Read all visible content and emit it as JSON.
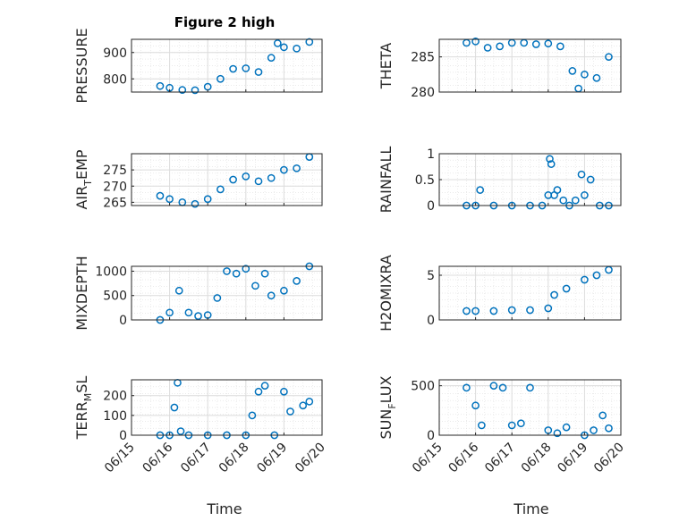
{
  "figure": {
    "title": "Figure 2 high",
    "x_label": "Time",
    "x_ticks": [
      "06/15",
      "06/16",
      "06/17",
      "06/18",
      "06/19",
      "06/20"
    ]
  },
  "colors": {
    "marker": "#0072BD",
    "grid": "#dcdcdc",
    "axis": "#262626"
  },
  "chart_data": [
    {
      "id": "pressure",
      "type": "scatter",
      "ylabel": "PRESSURE",
      "ylim": [
        750,
        950
      ],
      "yticks": [
        800,
        900
      ],
      "x": [
        "06/15 18:00",
        "06/16 00:00",
        "06/16 08:00",
        "06/16 16:00",
        "06/17 00:00",
        "06/17 08:00",
        "06/17 16:00",
        "06/18 00:00",
        "06/18 08:00",
        "06/18 16:00",
        "06/18 20:00",
        "06/19 00:00",
        "06/19 08:00",
        "06/19 16:00"
      ],
      "y": [
        773,
        766,
        758,
        757,
        770,
        800,
        838,
        840,
        826,
        880,
        935,
        920,
        915,
        940
      ]
    },
    {
      "id": "theta",
      "type": "scatter",
      "ylabel": "THETA",
      "ylim": [
        280,
        287.5
      ],
      "yticks": [
        280,
        285
      ],
      "x": [
        "06/15 18:00",
        "06/16 00:00",
        "06/16 08:00",
        "06/16 16:00",
        "06/17 00:00",
        "06/17 08:00",
        "06/17 16:00",
        "06/18 00:00",
        "06/18 08:00",
        "06/18 16:00",
        "06/18 20:00",
        "06/19 00:00",
        "06/19 08:00",
        "06/19 16:00"
      ],
      "y": [
        287.0,
        287.2,
        286.3,
        286.5,
        287.0,
        287.0,
        286.8,
        286.9,
        286.5,
        283.0,
        280.5,
        282.5,
        282.0,
        285.0
      ]
    },
    {
      "id": "air_temp",
      "type": "scatter",
      "ylabel": "AIR",
      "ylabel_sub": "T",
      "ylabel_rest": "EMP",
      "ylim": [
        264,
        280
      ],
      "yticks": [
        265,
        270,
        275
      ],
      "x": [
        "06/15 18:00",
        "06/16 00:00",
        "06/16 08:00",
        "06/16 16:00",
        "06/17 00:00",
        "06/17 08:00",
        "06/17 16:00",
        "06/18 00:00",
        "06/18 08:00",
        "06/18 16:00",
        "06/19 00:00",
        "06/19 08:00",
        "06/19 16:00"
      ],
      "y": [
        267,
        266,
        265,
        264.5,
        266,
        269,
        272,
        273,
        271.5,
        272.5,
        275,
        275.5,
        279
      ]
    },
    {
      "id": "rainfall",
      "type": "scatter",
      "ylabel": "RAINFALL",
      "ylim": [
        0,
        1
      ],
      "yticks": [
        0,
        0.5,
        1
      ],
      "x": [
        "06/15 18:00",
        "06/16 00:00",
        "06/16 03:00",
        "06/16 12:00",
        "06/17 00:00",
        "06/17 12:00",
        "06/17 20:00",
        "06/18 00:00",
        "06/18 01:00",
        "06/18 02:00",
        "06/18 04:00",
        "06/18 06:00",
        "06/18 10:00",
        "06/18 14:00",
        "06/18 18:00",
        "06/18 22:00",
        "06/19 00:00",
        "06/19 04:00",
        "06/19 10:00",
        "06/19 16:00"
      ],
      "y": [
        0,
        0,
        0.3,
        0,
        0,
        0,
        0,
        0.2,
        0.9,
        0.8,
        0.2,
        0.3,
        0.1,
        0,
        0.1,
        0.6,
        0.2,
        0.5,
        0,
        0
      ]
    },
    {
      "id": "mixdepth",
      "type": "scatter",
      "ylabel": "MIXDEPTH",
      "ylim": [
        0,
        1100
      ],
      "yticks": [
        0,
        500,
        1000
      ],
      "x": [
        "06/15 18:00",
        "06/16 00:00",
        "06/16 06:00",
        "06/16 12:00",
        "06/16 18:00",
        "06/17 00:00",
        "06/17 06:00",
        "06/17 12:00",
        "06/17 18:00",
        "06/18 00:00",
        "06/18 06:00",
        "06/18 12:00",
        "06/18 16:00",
        "06/19 00:00",
        "06/19 08:00",
        "06/19 16:00"
      ],
      "y": [
        0,
        150,
        600,
        150,
        80,
        100,
        450,
        1000,
        950,
        1050,
        700,
        950,
        500,
        600,
        800,
        1100
      ]
    },
    {
      "id": "h2omixra",
      "type": "scatter",
      "ylabel": "H2OMIXRA",
      "ylim": [
        0,
        6
      ],
      "yticks": [
        0,
        5
      ],
      "x": [
        "06/15 18:00",
        "06/16 00:00",
        "06/16 12:00",
        "06/17 00:00",
        "06/17 12:00",
        "06/18 00:00",
        "06/18 04:00",
        "06/18 12:00",
        "06/19 00:00",
        "06/19 08:00",
        "06/19 16:00"
      ],
      "y": [
        1.0,
        1.0,
        1.0,
        1.1,
        1.1,
        1.3,
        2.8,
        3.5,
        4.5,
        5.0,
        5.6
      ]
    },
    {
      "id": "terr_msl",
      "type": "scatter",
      "ylabel": "TERR",
      "ylabel_sub": "M",
      "ylabel_rest": "SL",
      "ylim": [
        0,
        280
      ],
      "yticks": [
        0,
        100,
        200
      ],
      "x": [
        "06/15 18:00",
        "06/16 00:00",
        "06/16 03:00",
        "06/16 05:00",
        "06/16 07:00",
        "06/16 12:00",
        "06/17 00:00",
        "06/17 12:00",
        "06/18 00:00",
        "06/18 04:00",
        "06/18 08:00",
        "06/18 12:00",
        "06/18 18:00",
        "06/19 00:00",
        "06/19 04:00",
        "06/19 12:00",
        "06/19 16:00"
      ],
      "y": [
        0,
        0,
        140,
        265,
        20,
        0,
        0,
        0,
        0,
        100,
        220,
        250,
        0,
        220,
        120,
        150,
        170
      ]
    },
    {
      "id": "sun_flux",
      "type": "scatter",
      "ylabel": "SUN",
      "ylabel_sub": "F",
      "ylabel_rest": "LUX",
      "ylim": [
        0,
        560
      ],
      "yticks": [
        0,
        500
      ],
      "x": [
        "06/15 18:00",
        "06/16 00:00",
        "06/16 04:00",
        "06/16 12:00",
        "06/16 18:00",
        "06/17 00:00",
        "06/17 06:00",
        "06/17 12:00",
        "06/18 00:00",
        "06/18 06:00",
        "06/18 12:00",
        "06/19 00:00",
        "06/19 06:00",
        "06/19 12:00",
        "06/19 16:00"
      ],
      "y": [
        480,
        300,
        100,
        500,
        480,
        100,
        120,
        480,
        50,
        20,
        80,
        0,
        50,
        200,
        70
      ]
    }
  ]
}
